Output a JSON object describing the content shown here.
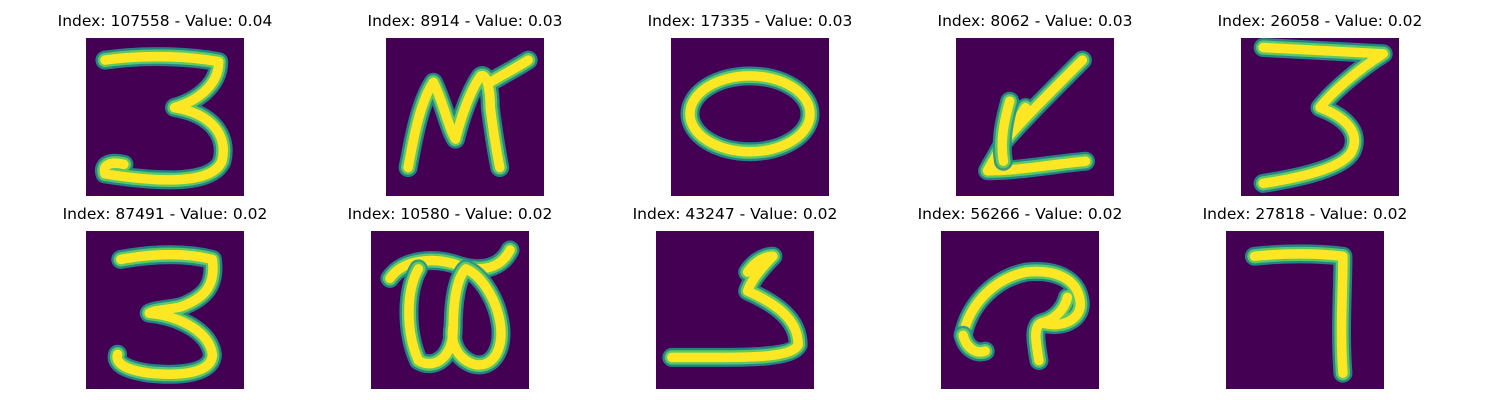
{
  "colors": {
    "background": "#440154",
    "stroke_edge": "#21918c",
    "stroke_mid": "#5ec962",
    "stroke_core": "#fde725"
  },
  "images": [
    {
      "title": "Index: 107558 - Value: 0.04",
      "glyph": "3"
    },
    {
      "title": "Index: 8914 - Value: 0.03",
      "glyph": "M"
    },
    {
      "title": "Index: 17335 - Value: 0.03",
      "glyph": "O"
    },
    {
      "title": "Index: 8062 - Value: 0.03",
      "glyph": "L"
    },
    {
      "title": "Index: 26058 - Value: 0.02",
      "glyph": "3"
    },
    {
      "title": "Index: 87491 - Value: 0.02",
      "glyph": "3"
    },
    {
      "title": "Index: 10580 - Value: 0.02",
      "glyph": "B"
    },
    {
      "title": "Index: 43247 - Value: 0.02",
      "glyph": "2"
    },
    {
      "title": "Index: 56266 - Value: 0.02",
      "glyph": "a"
    },
    {
      "title": "Index: 27818 - Value: 0.02",
      "glyph": "7"
    }
  ]
}
